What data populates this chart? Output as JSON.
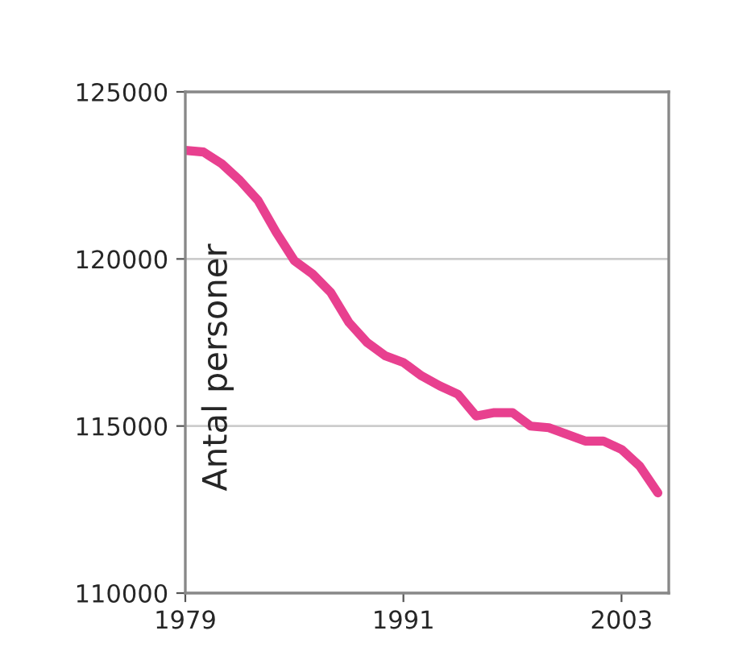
{
  "chart_data": {
    "type": "line",
    "ylabel": "Antal personer",
    "x": [
      1979,
      1980,
      1981,
      1982,
      1983,
      1984,
      1985,
      1986,
      1987,
      1988,
      1989,
      1990,
      1991,
      1992,
      1993,
      1994,
      1995,
      1996,
      1997,
      1998,
      1999,
      2000,
      2001,
      2002,
      2003,
      2004,
      2005
    ],
    "series": [
      {
        "color": "#e8408f",
        "values": [
          123250,
          123200,
          122850,
          122350,
          121750,
          120800,
          119950,
          119550,
          119000,
          118100,
          117500,
          117100,
          116900,
          116500,
          116200,
          115950,
          115300,
          115400,
          115400,
          115000,
          114950,
          114750,
          114550,
          114550,
          114300,
          113800,
          113000
        ]
      }
    ],
    "xlim": [
      1979,
      2005.6
    ],
    "xticks": [
      1979,
      1991,
      2003
    ],
    "ylim": [
      110000,
      125000
    ],
    "yticks": [
      110000,
      115000,
      120000,
      125000
    ],
    "grid": "y",
    "legend": false,
    "marker": "none",
    "line_style": "solid"
  }
}
